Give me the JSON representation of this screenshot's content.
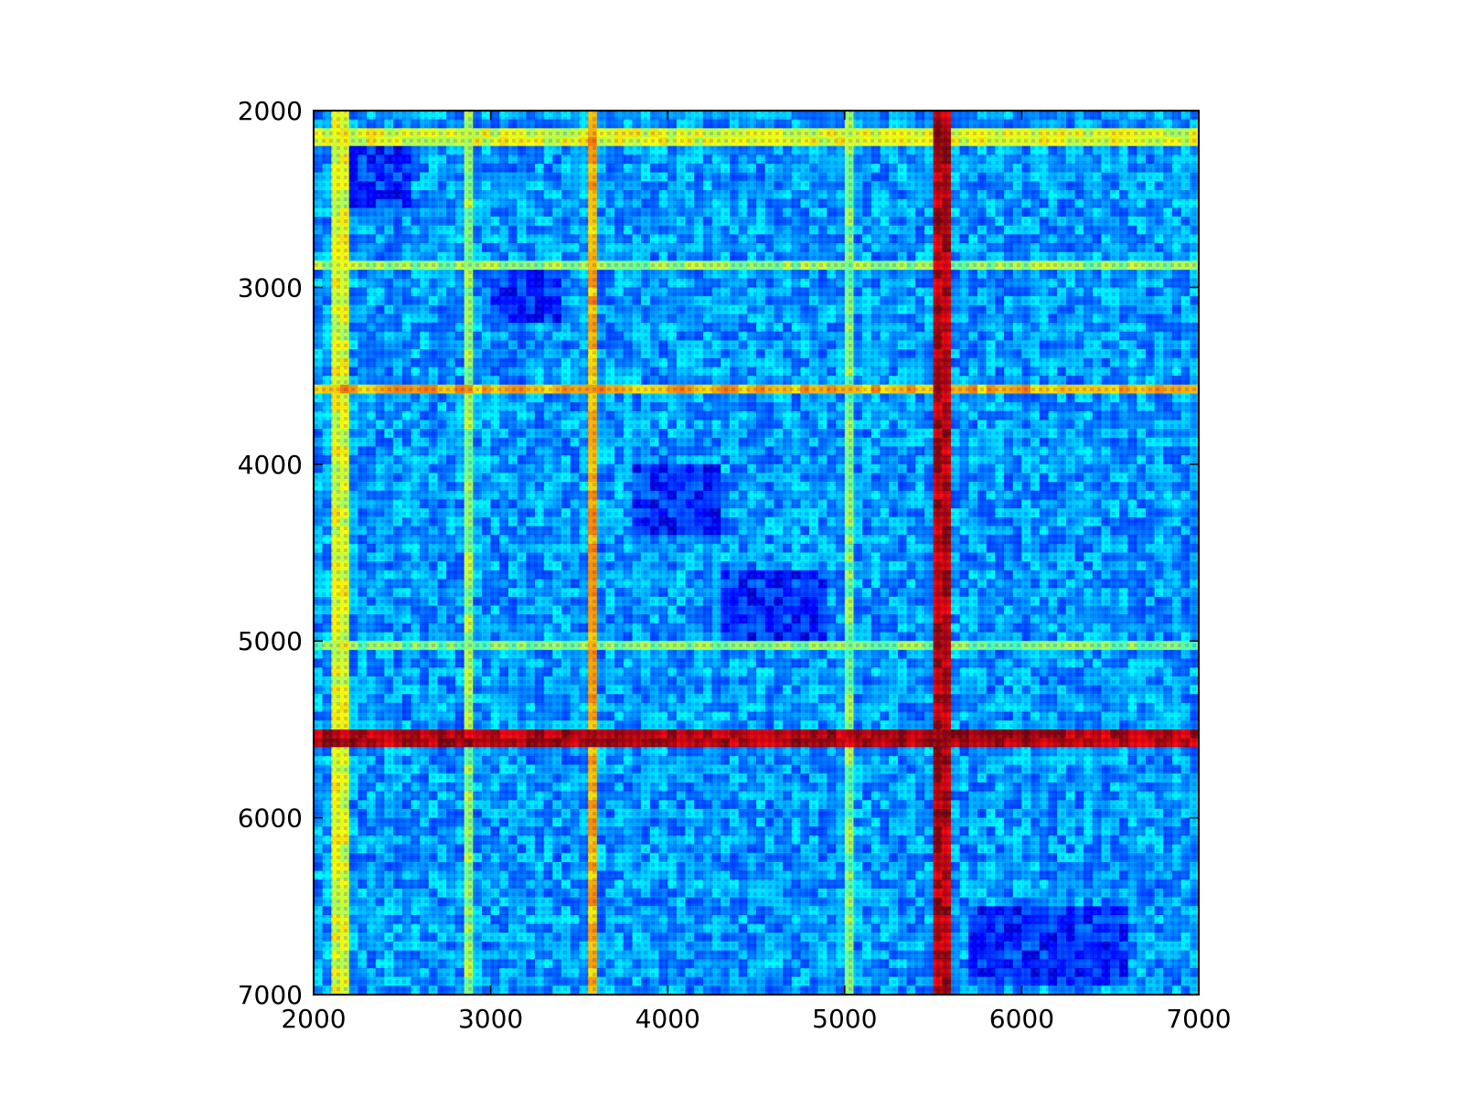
{
  "chart_data": {
    "type": "heatmap",
    "title": "",
    "xlabel": "",
    "ylabel": "",
    "xlim": [
      2000,
      7000
    ],
    "ylim": [
      7000,
      2000
    ],
    "y_axis_inverted": true,
    "grid": false,
    "legend": "none",
    "colormap": "jet",
    "xticks": [
      2000,
      3000,
      4000,
      5000,
      6000,
      7000
    ],
    "yticks": [
      2000,
      3000,
      4000,
      5000,
      6000,
      7000
    ],
    "xtick_labels": [
      "2000",
      "3000",
      "4000",
      "5000",
      "6000",
      "7000"
    ],
    "ytick_labels": [
      "2000",
      "3000",
      "4000",
      "5000",
      "6000",
      "7000"
    ],
    "value_range": [
      0,
      1
    ],
    "background_level": 0.28,
    "bands": [
      {
        "center": 2150,
        "width": 30,
        "value": 0.62
      },
      {
        "center": 2870,
        "width": 35,
        "value": 0.55
      },
      {
        "center": 3580,
        "width": 40,
        "value": 0.72
      },
      {
        "center": 5020,
        "width": 30,
        "value": 0.52
      },
      {
        "center": 5560,
        "width": 60,
        "value": 0.96
      }
    ],
    "dark_blocks": [
      {
        "x": [
          2200,
          2550
        ],
        "y": [
          2200,
          2550
        ]
      },
      {
        "x": [
          3000,
          3400
        ],
        "y": [
          2850,
          3200
        ]
      },
      {
        "x": [
          3800,
          4300
        ],
        "y": [
          4000,
          4400
        ]
      },
      {
        "x": [
          4300,
          4900
        ],
        "y": [
          4600,
          5000
        ]
      },
      {
        "x": [
          5700,
          6600
        ],
        "y": [
          6500,
          6950
        ]
      }
    ]
  }
}
